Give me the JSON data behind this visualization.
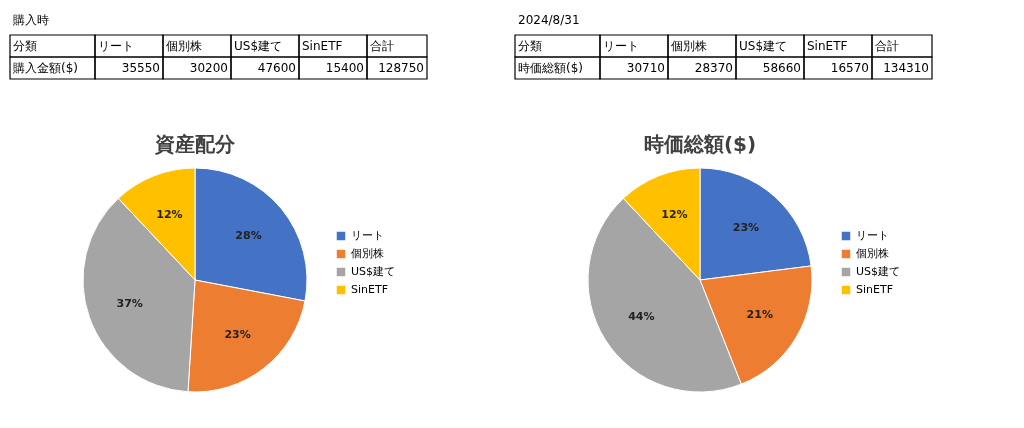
{
  "chart_data": [
    {
      "type": "pie",
      "title": "資産配分",
      "categories": [
        "リート",
        "個別株",
        "US$建て",
        "SinETF"
      ],
      "values": [
        28,
        23,
        37,
        12
      ],
      "colors": [
        "#4472c4",
        "#ed7d31",
        "#a5a5a5",
        "#ffc000"
      ],
      "value_labels": [
        "28%",
        "23%",
        "37%",
        "12%"
      ],
      "legend": "right",
      "annotations": [
        "購入時",
        "分類",
        "購入金額($)",
        "合計",
        "35550",
        "30200",
        "47600",
        "15400",
        "128750"
      ]
    },
    {
      "type": "pie",
      "title": "時価総額($)",
      "categories": [
        "リート",
        "個別株",
        "US$建て",
        "SinETF"
      ],
      "values": [
        23,
        21,
        44,
        12
      ],
      "colors": [
        "#4472c4",
        "#ed7d31",
        "#a5a5a5",
        "#ffc000"
      ],
      "value_labels": [
        "23%",
        "21%",
        "44%",
        "12%"
      ],
      "legend": "right",
      "annotations": [
        "2024/8/31",
        "分類",
        "時価総額($)",
        "合計",
        "30710",
        "28370",
        "58660",
        "16570",
        "134310"
      ]
    }
  ]
}
